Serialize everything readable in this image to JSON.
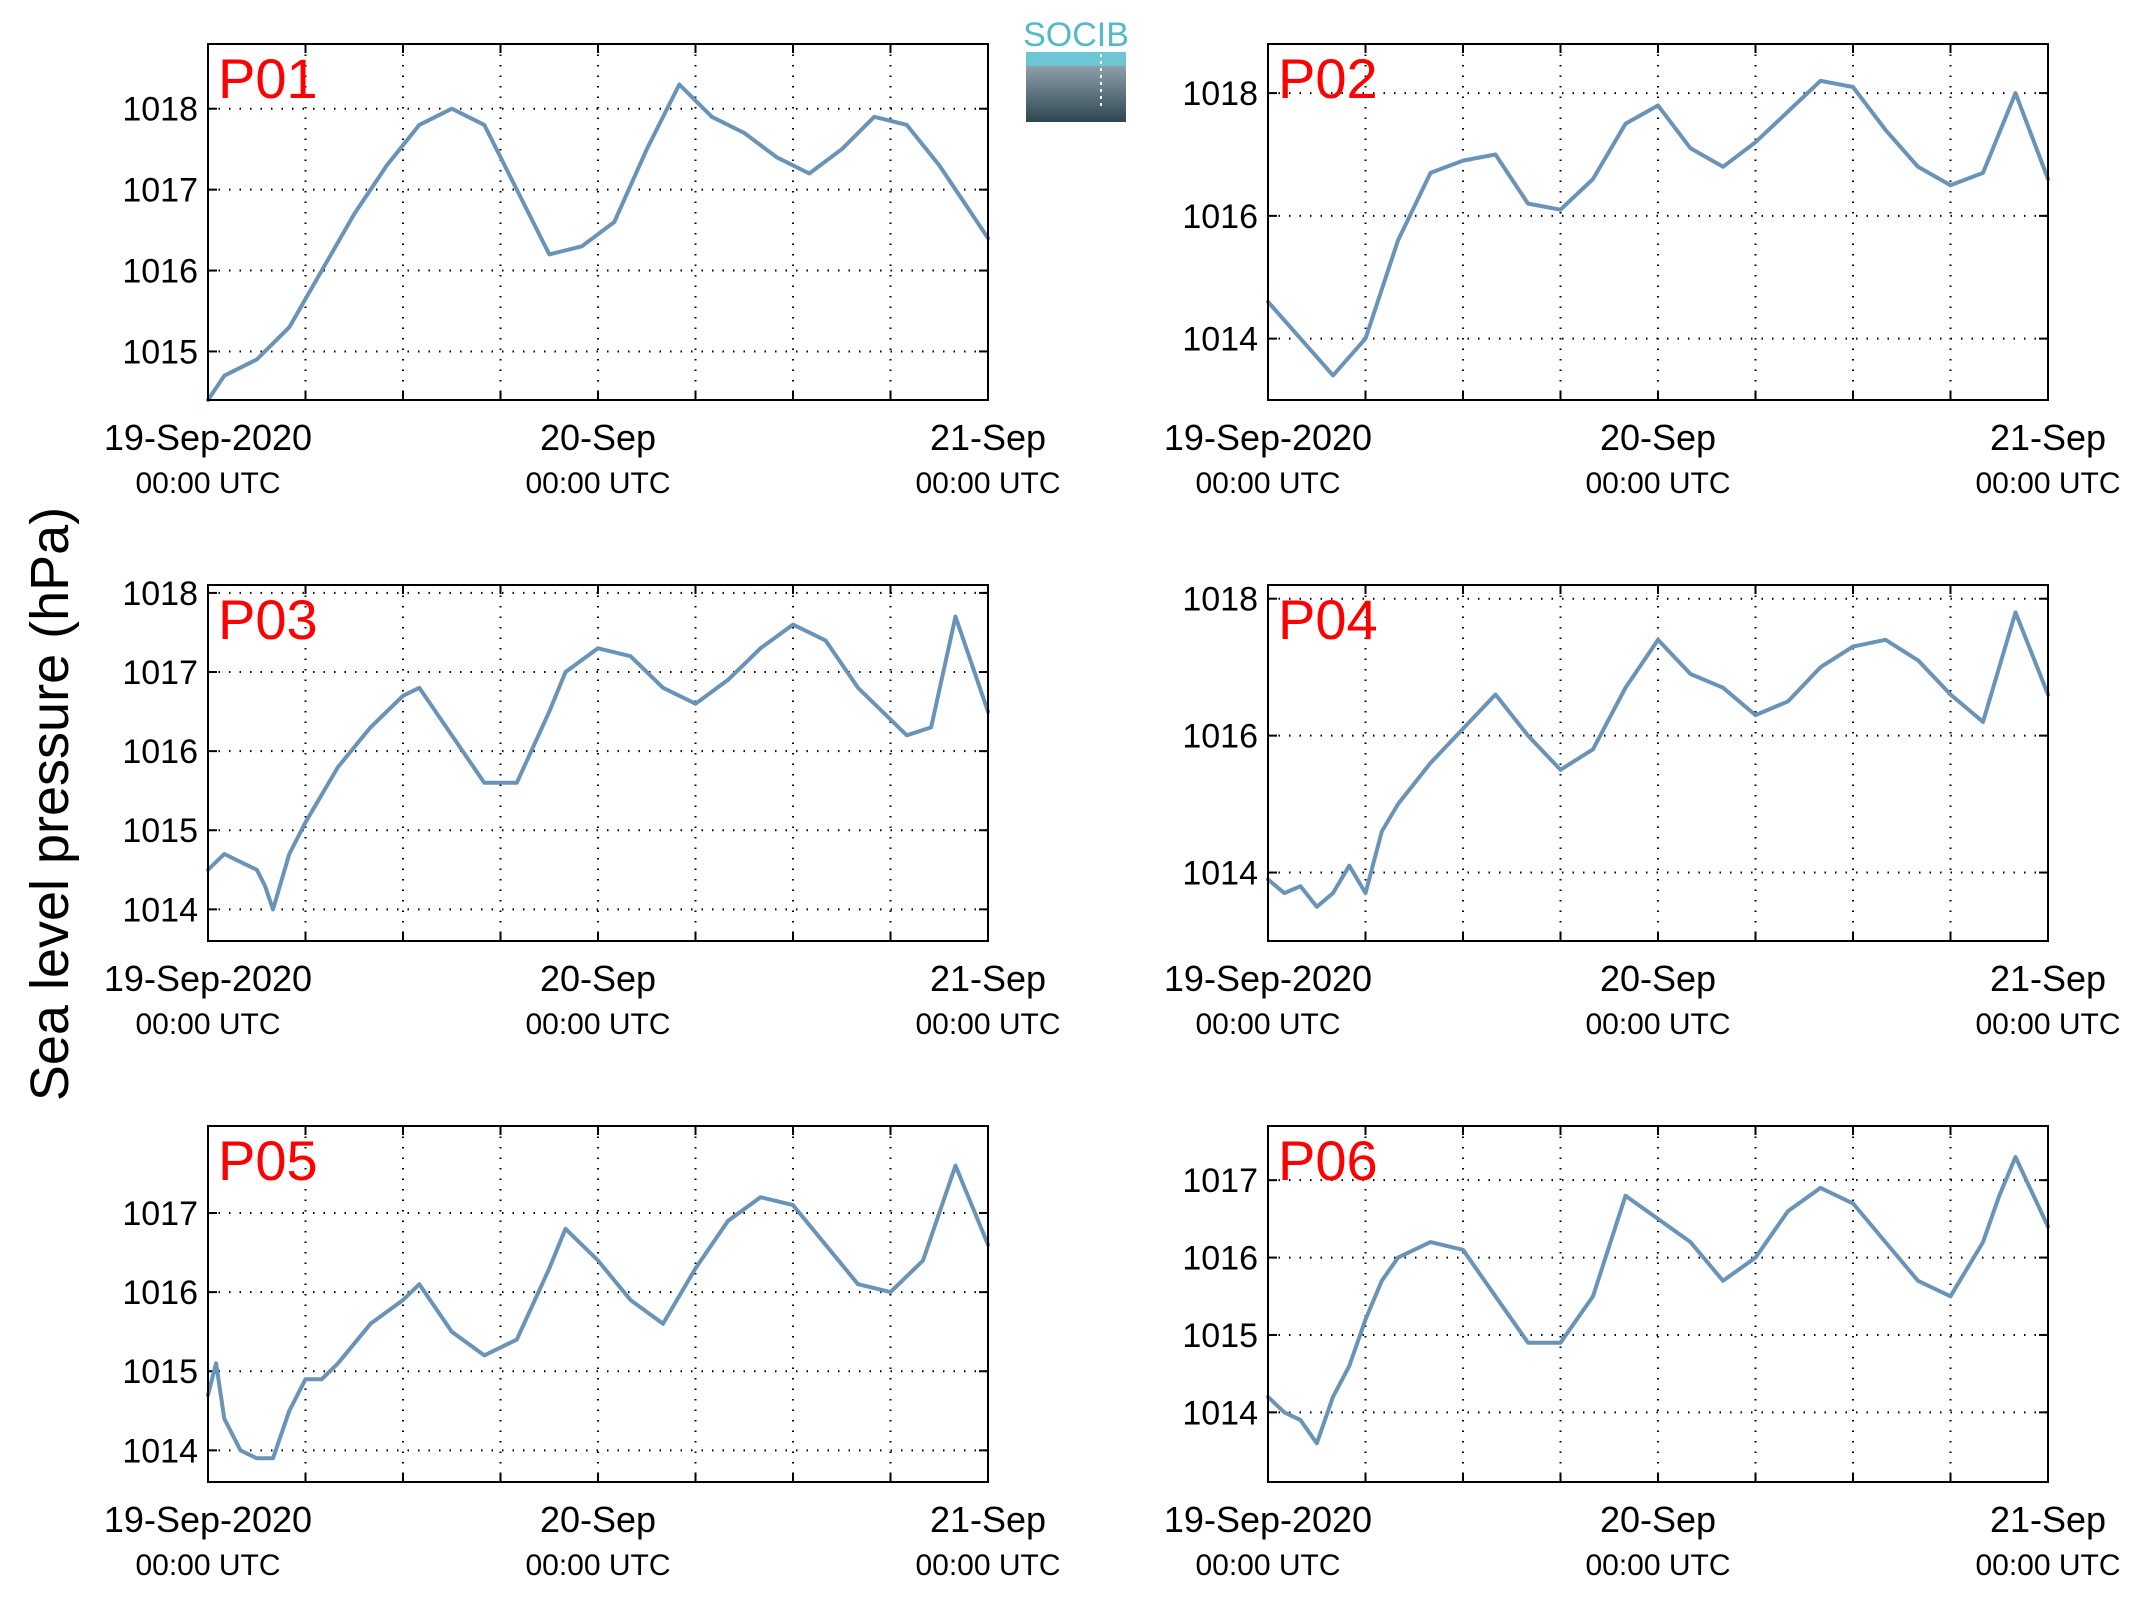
{
  "figure": {
    "ylabel": "Sea level pressure (hPa)",
    "logo": "SOCIB",
    "colors": {
      "series": "#6a93b8",
      "panel_label": "#ff0000",
      "logo_top": "#6cc6d4",
      "logo_bottom": "#2f4650"
    }
  },
  "chart_data": [
    {
      "type": "line",
      "panel_label": "P01",
      "x_range": [
        "2020-09-19T00:00Z",
        "2020-09-21T00:00Z"
      ],
      "x_ticks": [
        {
          "date": "19-Sep-2020",
          "time": "00:00 UTC"
        },
        {
          "date": "20-Sep",
          "time": "00:00 UTC"
        },
        {
          "date": "21-Sep",
          "time": "00:00 UTC"
        }
      ],
      "ylim": [
        1014.4,
        1018.8
      ],
      "yticks": [
        1015,
        1016,
        1017,
        1018
      ],
      "grid": true,
      "x_hours": [
        0,
        1,
        3,
        5,
        7,
        9,
        11,
        13,
        15,
        17,
        19,
        21,
        23,
        25,
        27,
        29,
        31,
        33,
        35,
        37,
        39,
        41,
        43,
        45,
        47,
        48
      ],
      "values": [
        1014.4,
        1014.7,
        1014.9,
        1015.3,
        1016.0,
        1016.7,
        1017.3,
        1017.8,
        1018.0,
        1017.8,
        1017.0,
        1016.2,
        1016.3,
        1016.6,
        1017.5,
        1018.3,
        1017.9,
        1017.7,
        1017.4,
        1017.2,
        1017.5,
        1017.9,
        1017.8,
        1017.3,
        1016.7,
        1016.4
      ]
    },
    {
      "type": "line",
      "panel_label": "P02",
      "x_range": [
        "2020-09-19T00:00Z",
        "2020-09-21T00:00Z"
      ],
      "x_ticks": [
        {
          "date": "19-Sep-2020",
          "time": "00:00 UTC"
        },
        {
          "date": "20-Sep",
          "time": "00:00 UTC"
        },
        {
          "date": "21-Sep",
          "time": "00:00 UTC"
        }
      ],
      "ylim": [
        1013.0,
        1018.8
      ],
      "yticks": [
        1014,
        1016,
        1018
      ],
      "grid": true,
      "x_hours": [
        0,
        2,
        4,
        6,
        8,
        10,
        12,
        14,
        16,
        18,
        20,
        22,
        24,
        26,
        28,
        30,
        32,
        34,
        36,
        38,
        40,
        42,
        44,
        46,
        48
      ],
      "values": [
        1014.6,
        1014.0,
        1013.4,
        1014.0,
        1015.6,
        1016.7,
        1016.9,
        1017.0,
        1016.2,
        1016.1,
        1016.6,
        1017.5,
        1017.8,
        1017.1,
        1016.8,
        1017.2,
        1017.7,
        1018.2,
        1018.1,
        1017.4,
        1016.8,
        1016.5,
        1016.7,
        1018.0,
        1016.6
      ]
    },
    {
      "type": "line",
      "panel_label": "P03",
      "x_range": [
        "2020-09-19T00:00Z",
        "2020-09-21T00:00Z"
      ],
      "x_ticks": [
        {
          "date": "19-Sep-2020",
          "time": "00:00 UTC"
        },
        {
          "date": "20-Sep",
          "time": "00:00 UTC"
        },
        {
          "date": "21-Sep",
          "time": "00:00 UTC"
        }
      ],
      "ylim": [
        1013.6,
        1018.1
      ],
      "yticks": [
        1014,
        1015,
        1016,
        1017,
        1018
      ],
      "grid": true,
      "x_hours": [
        0,
        1,
        2,
        3,
        3.5,
        4,
        5,
        6,
        8,
        10,
        12,
        13,
        15,
        17,
        19,
        21,
        22,
        24,
        26,
        28,
        30,
        32,
        34,
        36,
        38,
        40,
        42,
        43,
        44.5,
        46,
        48
      ],
      "values": [
        1014.5,
        1014.7,
        1014.6,
        1014.5,
        1014.3,
        1014.0,
        1014.7,
        1015.1,
        1015.8,
        1016.3,
        1016.7,
        1016.8,
        1016.2,
        1015.6,
        1015.6,
        1016.5,
        1017.0,
        1017.3,
        1017.2,
        1016.8,
        1016.6,
        1016.9,
        1017.3,
        1017.6,
        1017.4,
        1016.8,
        1016.4,
        1016.2,
        1016.3,
        1017.7,
        1016.5
      ]
    },
    {
      "type": "line",
      "panel_label": "P04",
      "x_range": [
        "2020-09-19T00:00Z",
        "2020-09-21T00:00Z"
      ],
      "x_ticks": [
        {
          "date": "19-Sep-2020",
          "time": "00:00 UTC"
        },
        {
          "date": "20-Sep",
          "time": "00:00 UTC"
        },
        {
          "date": "21-Sep",
          "time": "00:00 UTC"
        }
      ],
      "ylim": [
        1013.0,
        1018.2
      ],
      "yticks": [
        1014,
        1016,
        1018
      ],
      "grid": true,
      "x_hours": [
        0,
        1,
        2,
        3,
        4,
        5,
        6,
        7,
        8,
        10,
        12,
        14,
        16,
        18,
        20,
        22,
        24,
        26,
        28,
        30,
        32,
        34,
        36,
        38,
        40,
        42,
        44,
        46,
        48
      ],
      "values": [
        1013.9,
        1013.7,
        1013.8,
        1013.5,
        1013.7,
        1014.1,
        1013.7,
        1014.6,
        1015.0,
        1015.6,
        1016.1,
        1016.6,
        1016.0,
        1015.5,
        1015.8,
        1016.7,
        1017.4,
        1016.9,
        1016.7,
        1016.3,
        1016.5,
        1017.0,
        1017.3,
        1017.4,
        1017.1,
        1016.6,
        1016.2,
        1017.8,
        1016.6
      ]
    },
    {
      "type": "line",
      "panel_label": "P05",
      "x_range": [
        "2020-09-19T00:00Z",
        "2020-09-21T00:00Z"
      ],
      "x_ticks": [
        {
          "date": "19-Sep-2020",
          "time": "00:00 UTC"
        },
        {
          "date": "20-Sep",
          "time": "00:00 UTC"
        },
        {
          "date": "21-Sep",
          "time": "00:00 UTC"
        }
      ],
      "ylim": [
        1013.6,
        1018.1
      ],
      "yticks": [
        1014,
        1015,
        1016,
        1017
      ],
      "grid": true,
      "x_hours": [
        0,
        0.5,
        1,
        2,
        3,
        4,
        5,
        6,
        7,
        8,
        10,
        12,
        13,
        15,
        17,
        19,
        21,
        22,
        24,
        26,
        28,
        30,
        32,
        34,
        36,
        38,
        40,
        42,
        44,
        46,
        48
      ],
      "values": [
        1014.7,
        1015.1,
        1014.4,
        1014.0,
        1013.9,
        1013.9,
        1014.5,
        1014.9,
        1014.9,
        1015.1,
        1015.6,
        1015.9,
        1016.1,
        1015.5,
        1015.2,
        1015.4,
        1016.3,
        1016.8,
        1016.4,
        1015.9,
        1015.6,
        1016.3,
        1016.9,
        1017.2,
        1017.1,
        1016.6,
        1016.1,
        1016.0,
        1016.4,
        1017.6,
        1016.6
      ]
    },
    {
      "type": "line",
      "panel_label": "P06",
      "x_range": [
        "2020-09-19T00:00Z",
        "2020-09-21T00:00Z"
      ],
      "x_ticks": [
        {
          "date": "19-Sep-2020",
          "time": "00:00 UTC"
        },
        {
          "date": "20-Sep",
          "time": "00:00 UTC"
        },
        {
          "date": "21-Sep",
          "time": "00:00 UTC"
        }
      ],
      "ylim": [
        1013.1,
        1017.7
      ],
      "yticks": [
        1014,
        1015,
        1016,
        1017
      ],
      "grid": true,
      "x_hours": [
        0,
        1,
        2,
        3,
        4,
        5,
        6,
        7,
        8,
        10,
        12,
        14,
        16,
        18,
        20,
        22,
        24,
        26,
        28,
        30,
        32,
        34,
        36,
        38,
        40,
        42,
        44,
        45,
        46,
        48
      ],
      "values": [
        1014.2,
        1014.0,
        1013.9,
        1013.6,
        1014.2,
        1014.6,
        1015.2,
        1015.7,
        1016.0,
        1016.2,
        1016.1,
        1015.5,
        1014.9,
        1014.9,
        1015.5,
        1016.8,
        1016.5,
        1016.2,
        1015.7,
        1016.0,
        1016.6,
        1016.9,
        1016.7,
        1016.2,
        1015.7,
        1015.5,
        1016.2,
        1016.8,
        1017.3,
        1016.4
      ]
    }
  ]
}
